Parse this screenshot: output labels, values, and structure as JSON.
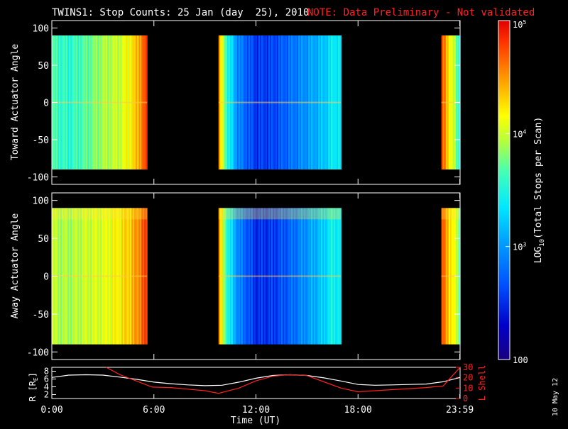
{
  "header": {
    "title": "TWINS1: Stop Counts: 25 Jan (day  25), 2010",
    "note": "NOTE: Data Preliminary - Not validated"
  },
  "footer": {
    "date_stamp": "10 May 12"
  },
  "colors": {
    "background": "#000000",
    "axes": "#ffffff",
    "note": "#ff2020",
    "r_line": "#ffffff",
    "l_shell_line": "#ff2020"
  },
  "chart_data": [
    {
      "type": "heatmap",
      "panel": "toward",
      "ylabel": "Toward Actuator Angle",
      "ylim": [
        -110,
        110
      ],
      "yticks": [
        100,
        50,
        0,
        -50,
        -100
      ],
      "xlim": [
        0,
        24
      ],
      "data_extent": [
        -90,
        90
      ],
      "segments": [
        {
          "start": 0.0,
          "end": 5.6
        },
        {
          "start": 9.8,
          "end": 17.0
        },
        {
          "start": 22.9,
          "end": 24.0
        }
      ],
      "log_counts_profile": {
        "times": [
          0.0,
          1.0,
          2.0,
          3.0,
          4.0,
          4.8,
          5.4,
          5.6,
          9.8,
          10.0,
          10.4,
          11.0,
          12.0,
          13.0,
          14.0,
          15.0,
          16.0,
          16.5,
          17.0,
          22.9,
          23.2,
          23.6,
          24.0
        ],
        "values": [
          3.65,
          3.55,
          3.7,
          3.9,
          4.0,
          4.25,
          4.65,
          4.75,
          4.5,
          4.1,
          3.45,
          2.9,
          2.55,
          2.6,
          2.8,
          3.0,
          3.2,
          3.4,
          3.4,
          4.75,
          4.4,
          4.0,
          3.5
        ]
      }
    },
    {
      "type": "heatmap",
      "panel": "away",
      "ylabel": "Away Actuator Angle",
      "ylim": [
        -110,
        110
      ],
      "yticks": [
        100,
        50,
        0,
        -50,
        -100
      ],
      "xlim": [
        0,
        24
      ],
      "data_extent": [
        -90,
        90
      ],
      "segments": [
        {
          "start": 0.0,
          "end": 5.6
        },
        {
          "start": 9.8,
          "end": 17.0
        },
        {
          "start": 22.9,
          "end": 24.0
        }
      ],
      "log_counts_profile": {
        "times": [
          0.0,
          1.0,
          2.0,
          3.0,
          4.0,
          4.8,
          5.4,
          5.6,
          9.8,
          10.0,
          10.4,
          11.0,
          12.0,
          13.0,
          14.0,
          15.0,
          16.0,
          16.5,
          17.0,
          22.9,
          23.2,
          23.6,
          24.0
        ],
        "values": [
          3.95,
          3.9,
          4.0,
          4.05,
          4.2,
          4.4,
          4.7,
          4.75,
          4.55,
          4.1,
          3.45,
          2.9,
          2.5,
          2.55,
          2.75,
          3.0,
          3.25,
          3.45,
          3.4,
          4.75,
          4.45,
          4.15,
          3.8
        ]
      }
    },
    {
      "type": "line",
      "panel": "ephemeris",
      "xlabel": "Time (UT)",
      "x_ticks": [
        {
          "value": 0,
          "label": "0:00"
        },
        {
          "value": 6,
          "label": "6:00"
        },
        {
          "value": 12,
          "label": "12:00"
        },
        {
          "value": 18,
          "label": "18:00"
        },
        {
          "value": 23.983,
          "label": "23:59"
        }
      ],
      "ylabel_left": "R [R",
      "ylabel_left_sub": "E",
      "ylabel_left_close": "]",
      "ylim_left": [
        1,
        9
      ],
      "yticks_left": [
        2,
        4,
        6,
        8
      ],
      "ylabel_right": "L Shell",
      "ylim_right": [
        0,
        30
      ],
      "yticks_right": [
        0,
        10,
        20,
        30
      ],
      "series": [
        {
          "axis": "left",
          "x": [
            0.0,
            1.0,
            2.0,
            3.0,
            4.0,
            5.0,
            6.0,
            7.0,
            8.0,
            9.0,
            10.0,
            11.0,
            12.0,
            13.0,
            14.0,
            15.0,
            16.0,
            17.0,
            18.0,
            19.0,
            20.0,
            21.0,
            22.0,
            23.0,
            24.0
          ],
          "values": [
            6.4,
            7.0,
            7.1,
            7.0,
            6.5,
            5.9,
            5.2,
            4.8,
            4.5,
            4.3,
            4.4,
            5.2,
            6.2,
            6.9,
            7.1,
            6.9,
            6.3,
            5.5,
            4.6,
            4.4,
            4.5,
            4.6,
            4.7,
            5.3,
            6.4
          ]
        },
        {
          "axis": "right",
          "x": [
            3.2,
            4.0,
            5.9,
            7.0,
            8.0,
            9.0,
            9.8,
            11.0,
            12.0,
            13.0,
            14.0,
            15.0,
            16.0,
            17.0,
            18.0,
            19.0,
            20.0,
            21.0,
            22.0,
            23.0,
            24.0
          ],
          "values": [
            30,
            23,
            11,
            10.5,
            9,
            7.5,
            5,
            10,
            17,
            21.5,
            23,
            22,
            16,
            10,
            6.5,
            7.5,
            8.5,
            9.5,
            10.5,
            12,
            30
          ]
        }
      ]
    },
    {
      "type": "heatmap",
      "panel": "colorbar",
      "label": "(Total Stops per Scan)",
      "label_log_prefix": "LOG",
      "label_log_sub": "10",
      "scale": "log",
      "range": [
        100,
        100000
      ],
      "ticks": [
        {
          "value": 100,
          "label": "100",
          "sup": ""
        },
        {
          "value": 1000,
          "label": "10",
          "sup": "3"
        },
        {
          "value": 10000,
          "label": "10",
          "sup": "4"
        },
        {
          "value": 100000,
          "label": "10",
          "sup": "5"
        }
      ]
    }
  ]
}
